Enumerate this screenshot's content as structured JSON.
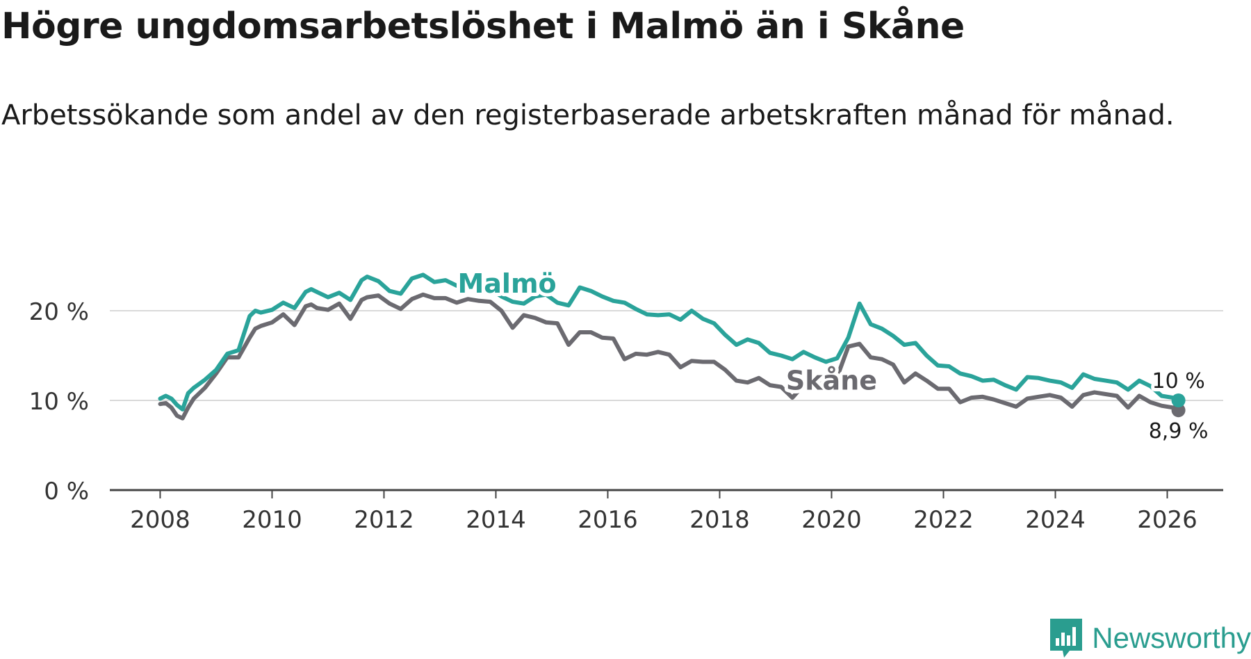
{
  "title": "Högre ungdomsarbetslöshet i Malmö än i Skåne",
  "subtitle": "Arbetssökande som andel av den registerbaserade arbetskraften månad för månad.",
  "brand": {
    "name": "Newsworthy",
    "icon": "newsworthy-logo-icon"
  },
  "colors": {
    "malmo": "#2aa39a",
    "skane": "#6b6a70",
    "grid": "#d9d9d9",
    "axis": "#444444"
  },
  "chart_data": {
    "type": "line",
    "title": "Högre ungdomsarbetslöshet i Malmö än i Skåne",
    "xlabel": "",
    "ylabel": "",
    "xlim": [
      2007.1,
      2027.0
    ],
    "ylim": [
      0,
      20
    ],
    "y_ticks": [
      0,
      10,
      20
    ],
    "y_tick_labels": [
      "0 %",
      "10 %",
      "20 %"
    ],
    "x_ticks": [
      2008,
      2010,
      2012,
      2014,
      2016,
      2018,
      2020,
      2022,
      2024,
      2026
    ],
    "x_tick_labels": [
      "2008",
      "2010",
      "2012",
      "2014",
      "2016",
      "2018",
      "2020",
      "2022",
      "2024",
      "2026"
    ],
    "series": [
      {
        "name": "Malmö",
        "label": "Malmö",
        "end_label": "10 %",
        "end_value": 10.0,
        "x": [
          2008.0,
          2008.1,
          2008.2,
          2008.3,
          2008.4,
          2008.5,
          2008.6,
          2008.8,
          2009.0,
          2009.2,
          2009.4,
          2009.6,
          2009.7,
          2009.8,
          2010.0,
          2010.2,
          2010.4,
          2010.6,
          2010.7,
          2010.8,
          2011.0,
          2011.2,
          2011.4,
          2011.6,
          2011.7,
          2011.9,
          2012.1,
          2012.3,
          2012.5,
          2012.7,
          2012.9,
          2013.1,
          2013.3,
          2013.5,
          2013.7,
          2013.9,
          2014.1,
          2014.3,
          2014.5,
          2014.7,
          2014.9,
          2015.1,
          2015.3,
          2015.5,
          2015.7,
          2015.9,
          2016.1,
          2016.3,
          2016.5,
          2016.7,
          2016.9,
          2017.1,
          2017.3,
          2017.5,
          2017.7,
          2017.9,
          2018.1,
          2018.3,
          2018.5,
          2018.7,
          2018.9,
          2019.1,
          2019.3,
          2019.5,
          2019.7,
          2019.9,
          2020.1,
          2020.3,
          2020.5,
          2020.7,
          2020.9,
          2021.1,
          2021.3,
          2021.5,
          2021.7,
          2021.9,
          2022.1,
          2022.3,
          2022.5,
          2022.7,
          2022.9,
          2023.1,
          2023.3,
          2023.5,
          2023.7,
          2023.9,
          2024.1,
          2024.3,
          2024.5,
          2024.7,
          2024.9,
          2025.1,
          2025.3,
          2025.5,
          2025.7,
          2025.9,
          2026.1,
          2026.2
        ],
        "values": [
          10.2,
          10.5,
          10.2,
          9.5,
          9.0,
          10.8,
          11.4,
          12.3,
          13.4,
          15.2,
          15.6,
          19.4,
          20.0,
          19.8,
          20.1,
          20.9,
          20.3,
          22.1,
          22.4,
          22.1,
          21.5,
          22.0,
          21.2,
          23.4,
          23.8,
          23.3,
          22.2,
          21.9,
          23.6,
          24.0,
          23.2,
          23.4,
          22.8,
          23.2,
          22.4,
          22.4,
          21.6,
          21.0,
          20.8,
          21.6,
          21.8,
          20.9,
          20.6,
          22.6,
          22.2,
          21.6,
          21.1,
          20.9,
          20.2,
          19.6,
          19.5,
          19.6,
          19.0,
          20.0,
          19.1,
          18.6,
          17.3,
          16.2,
          16.8,
          16.4,
          15.3,
          15.0,
          14.6,
          15.4,
          14.8,
          14.3,
          14.7,
          17.0,
          20.8,
          18.5,
          18.0,
          17.2,
          16.2,
          16.4,
          15.0,
          13.9,
          13.8,
          13.0,
          12.7,
          12.2,
          12.3,
          11.7,
          11.2,
          12.6,
          12.5,
          12.2,
          12.0,
          11.4,
          12.9,
          12.4,
          12.2,
          12.0,
          11.2,
          12.2,
          11.6,
          10.5,
          10.3,
          10.0
        ]
      },
      {
        "name": "Skåne",
        "label": "Skåne",
        "end_label": "8,9 %",
        "end_value": 8.9,
        "x": [
          2008.0,
          2008.1,
          2008.2,
          2008.3,
          2008.4,
          2008.5,
          2008.6,
          2008.8,
          2009.0,
          2009.2,
          2009.4,
          2009.6,
          2009.7,
          2009.8,
          2010.0,
          2010.2,
          2010.4,
          2010.6,
          2010.7,
          2010.8,
          2011.0,
          2011.2,
          2011.4,
          2011.6,
          2011.7,
          2011.9,
          2012.1,
          2012.3,
          2012.5,
          2012.7,
          2012.9,
          2013.1,
          2013.3,
          2013.5,
          2013.7,
          2013.9,
          2014.1,
          2014.3,
          2014.5,
          2014.7,
          2014.9,
          2015.1,
          2015.3,
          2015.5,
          2015.7,
          2015.9,
          2016.1,
          2016.3,
          2016.5,
          2016.7,
          2016.9,
          2017.1,
          2017.3,
          2017.5,
          2017.7,
          2017.9,
          2018.1,
          2018.3,
          2018.5,
          2018.7,
          2018.9,
          2019.1,
          2019.3,
          2019.5,
          2019.7,
          2019.9,
          2020.1,
          2020.3,
          2020.5,
          2020.7,
          2020.9,
          2021.1,
          2021.3,
          2021.5,
          2021.7,
          2021.9,
          2022.1,
          2022.3,
          2022.5,
          2022.7,
          2022.9,
          2023.1,
          2023.3,
          2023.5,
          2023.7,
          2023.9,
          2024.1,
          2024.3,
          2024.5,
          2024.7,
          2024.9,
          2025.1,
          2025.3,
          2025.5,
          2025.7,
          2025.9,
          2026.1,
          2026.2
        ],
        "values": [
          9.6,
          9.7,
          9.2,
          8.3,
          8.0,
          9.2,
          10.2,
          11.4,
          13.0,
          14.8,
          14.8,
          17.0,
          18.0,
          18.3,
          18.7,
          19.6,
          18.4,
          20.5,
          20.7,
          20.3,
          20.1,
          20.8,
          19.1,
          21.2,
          21.5,
          21.7,
          20.8,
          20.2,
          21.3,
          21.8,
          21.4,
          21.4,
          20.9,
          21.3,
          21.1,
          21.0,
          20.0,
          18.1,
          19.5,
          19.2,
          18.7,
          18.6,
          16.2,
          17.6,
          17.6,
          17.0,
          16.9,
          14.6,
          15.2,
          15.1,
          15.4,
          15.1,
          13.7,
          14.4,
          14.3,
          14.3,
          13.4,
          12.2,
          12.0,
          12.5,
          11.7,
          11.5,
          10.3,
          11.7,
          12.1,
          12.4,
          12.6,
          16.0,
          16.3,
          14.8,
          14.6,
          14.0,
          12.0,
          13.0,
          12.2,
          11.3,
          11.3,
          9.8,
          10.3,
          10.4,
          10.1,
          9.7,
          9.3,
          10.2,
          10.4,
          10.6,
          10.3,
          9.3,
          10.6,
          10.9,
          10.7,
          10.5,
          9.2,
          10.5,
          9.8,
          9.4,
          9.2,
          8.9
        ]
      }
    ]
  }
}
